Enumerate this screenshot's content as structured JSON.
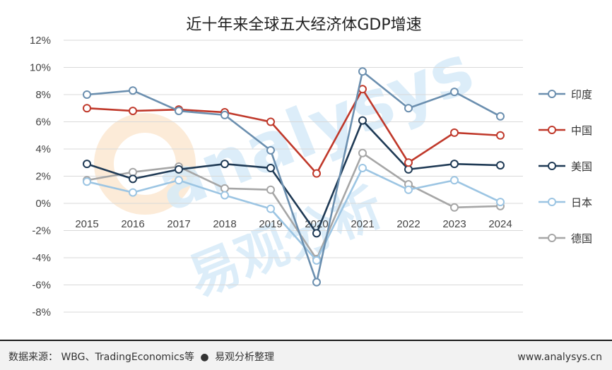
{
  "chart_data": {
    "type": "line",
    "title": "近十年来全球五大经济体GDP增速",
    "x": [
      "2015",
      "2016",
      "2017",
      "2018",
      "2019",
      "2020",
      "2021",
      "2022",
      "2023",
      "2024"
    ],
    "ylim": [
      -8,
      12
    ],
    "yticks": [
      "-8%",
      "-6%",
      "-4%",
      "-2%",
      "0%",
      "2%",
      "4%",
      "6%",
      "8%",
      "10%",
      "12%"
    ],
    "grid": true,
    "legend_position": "right",
    "series": [
      {
        "name": "印度",
        "color": "#6b8faf",
        "values": [
          8.0,
          8.3,
          6.8,
          6.5,
          3.9,
          -5.8,
          9.7,
          7.0,
          8.2,
          6.4
        ]
      },
      {
        "name": "中国",
        "color": "#c0392b",
        "values": [
          7.0,
          6.8,
          6.9,
          6.7,
          6.0,
          2.2,
          8.4,
          3.0,
          5.2,
          5.0
        ]
      },
      {
        "name": "美国",
        "color": "#1f3a55",
        "values": [
          2.9,
          1.8,
          2.5,
          2.9,
          2.6,
          -2.2,
          6.1,
          2.5,
          2.9,
          2.8
        ]
      },
      {
        "name": "日本",
        "color": "#9cc5e3",
        "values": [
          1.6,
          0.8,
          1.7,
          0.6,
          -0.4,
          -4.2,
          2.6,
          1.0,
          1.7,
          0.1
        ]
      },
      {
        "name": "德国",
        "color": "#a6a6a6",
        "values": [
          1.7,
          2.3,
          2.7,
          1.1,
          1.0,
          -4.1,
          3.7,
          1.4,
          -0.3,
          -0.2
        ]
      }
    ]
  },
  "footer": {
    "source": "数据来源： WBG、TradingEconomics等",
    "bullet": "●",
    "credit": "易观分析整理",
    "url": "www.analysys.cn"
  },
  "watermark": {
    "en": "analysys",
    "cn": "易观分析"
  },
  "colors": {
    "footer_bg": "#f2f2f2",
    "footer_rule": "#1a1a1a"
  }
}
